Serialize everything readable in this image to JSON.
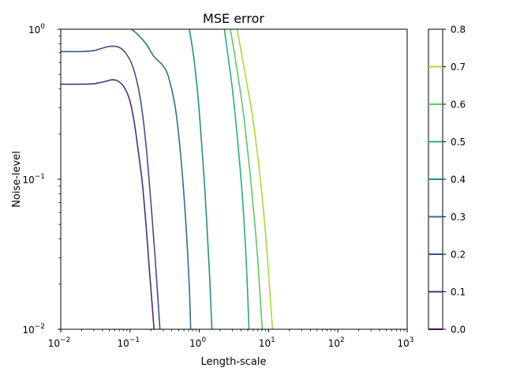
{
  "chart_data": {
    "type": "contour",
    "title": "MSE error",
    "xlabel": "Length-scale",
    "ylabel": "Noise-level",
    "xscale": "log",
    "yscale": "log",
    "xlim": [
      0.01,
      1000
    ],
    "ylim": [
      0.01,
      1
    ],
    "x_ticks": [
      {
        "value": 0.01,
        "base": "10",
        "exp": "−2"
      },
      {
        "value": 0.1,
        "base": "10",
        "exp": "−1"
      },
      {
        "value": 1,
        "base": "10",
        "exp": "0"
      },
      {
        "value": 10,
        "base": "10",
        "exp": "1"
      },
      {
        "value": 100,
        "base": "10",
        "exp": "2"
      },
      {
        "value": 1000,
        "base": "10",
        "exp": "3"
      }
    ],
    "y_ticks": [
      {
        "value": 0.01,
        "base": "10",
        "exp": "−2"
      },
      {
        "value": 0.1,
        "base": "10",
        "exp": "−1"
      },
      {
        "value": 1,
        "base": "10",
        "exp": "0"
      }
    ],
    "colorbar": {
      "range": [
        0.0,
        0.8
      ],
      "ticks": [
        "0.0",
        "0.1",
        "0.2",
        "0.3",
        "0.4",
        "0.5",
        "0.6",
        "0.7",
        "0.8"
      ],
      "level_colors": [
        "#440154",
        "#472f7d",
        "#3b518b",
        "#2c718e",
        "#21908d",
        "#27ad81",
        "#5cc863",
        "#aadc32"
      ]
    },
    "series": [
      {
        "level": 0.1,
        "color": "#472f7d",
        "x": [
          0.01,
          0.02,
          0.03,
          0.045,
          0.055,
          0.068,
          0.085,
          0.1,
          0.115,
          0.13,
          0.15,
          0.17,
          0.19,
          0.21,
          0.222
        ],
        "y": [
          0.43,
          0.43,
          0.433,
          0.45,
          0.46,
          0.45,
          0.4,
          0.33,
          0.24,
          0.16,
          0.095,
          0.05,
          0.025,
          0.014,
          0.01
        ]
      },
      {
        "level": 0.2,
        "color": "#3b518b",
        "x": [
          0.01,
          0.02,
          0.03,
          0.045,
          0.055,
          0.068,
          0.085,
          0.11,
          0.14,
          0.17,
          0.2,
          0.23,
          0.255,
          0.27
        ],
        "y": [
          0.71,
          0.71,
          0.72,
          0.76,
          0.77,
          0.76,
          0.7,
          0.56,
          0.35,
          0.17,
          0.07,
          0.03,
          0.015,
          0.01
        ]
      },
      {
        "level": 0.3,
        "color": "#2c718e",
        "x": [
          0.105,
          0.13,
          0.17,
          0.22,
          0.26,
          0.3,
          0.36,
          0.45,
          0.55,
          0.65,
          0.72,
          0.75
        ],
        "y": [
          1.0,
          0.92,
          0.8,
          0.66,
          0.61,
          0.57,
          0.48,
          0.3,
          0.13,
          0.045,
          0.018,
          0.01
        ]
      },
      {
        "level": 0.4,
        "color": "#21908d",
        "x": [
          0.72,
          0.85,
          1.0,
          1.2,
          1.4,
          1.52
        ],
        "y": [
          1.0,
          0.6,
          0.28,
          0.085,
          0.024,
          0.01
        ]
      },
      {
        "level": 0.5,
        "color": "#27ad81",
        "x": [
          2.3,
          2.6,
          3.0,
          3.5,
          4.2,
          4.8,
          5.2
        ],
        "y": [
          1.0,
          0.66,
          0.4,
          0.2,
          0.075,
          0.026,
          0.01
        ]
      },
      {
        "level": 0.6,
        "color": "#5cc863",
        "x": [
          2.8,
          3.2,
          3.8,
          4.5,
          5.5,
          6.7,
          7.6,
          8.1
        ],
        "y": [
          1.0,
          0.7,
          0.42,
          0.24,
          0.1,
          0.037,
          0.016,
          0.01
        ]
      },
      {
        "level": 0.7,
        "color": "#aadc32",
        "x": [
          3.5,
          4.0,
          4.8,
          5.8,
          7.0,
          8.5,
          9.8,
          10.8,
          11.4
        ],
        "y": [
          1.0,
          0.72,
          0.45,
          0.27,
          0.14,
          0.06,
          0.027,
          0.014,
          0.01
        ]
      }
    ]
  }
}
